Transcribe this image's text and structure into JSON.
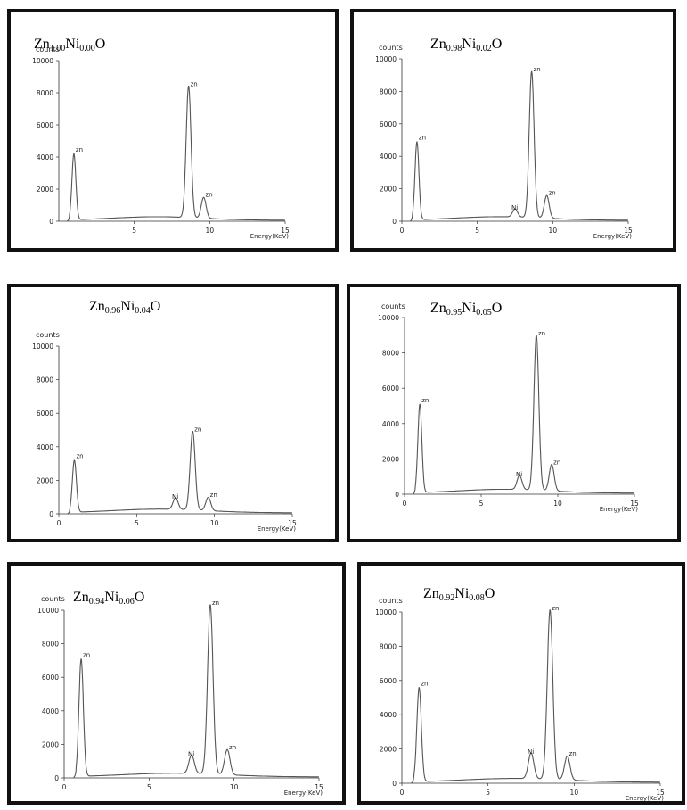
{
  "chart_data": [
    {
      "type": "line",
      "title_parts": [
        "Zn",
        "1.00",
        "Ni",
        "0.00",
        "O"
      ],
      "ylabel": "counts",
      "xlabel": "Energy(KeV)",
      "xlim": [
        0,
        15
      ],
      "ylim": [
        0,
        10000
      ],
      "xticks": [
        "5",
        "10",
        "15"
      ],
      "yticks": [
        "0",
        "2000",
        "4000",
        "6000",
        "8000",
        "10000"
      ],
      "grid": false,
      "peaks": [
        {
          "label": "zn",
          "energy": 1.0,
          "counts": 4100
        },
        {
          "label": "zn",
          "energy": 8.6,
          "counts": 8200
        },
        {
          "label": "zn",
          "energy": 9.6,
          "counts": 1300
        }
      ]
    },
    {
      "type": "line",
      "title_parts": [
        "Zn",
        "0.98",
        "Ni",
        "0.02",
        "O"
      ],
      "ylabel": "counts",
      "xlabel": "Energy(KeV)",
      "xlim": [
        0,
        15
      ],
      "ylim": [
        0,
        10000
      ],
      "xticks": [
        "0",
        "5",
        "10",
        "15"
      ],
      "yticks": [
        "0",
        "2000",
        "4000",
        "6000",
        "8000",
        "10000"
      ],
      "grid": false,
      "peaks": [
        {
          "label": "zn",
          "energy": 1.0,
          "counts": 4800
        },
        {
          "label": "Ni",
          "energy": 7.5,
          "counts": 500
        },
        {
          "label": "zn",
          "energy": 8.6,
          "counts": 9000
        },
        {
          "label": "zn",
          "energy": 9.6,
          "counts": 1400
        }
      ]
    },
    {
      "type": "line",
      "title_parts": [
        "Zn",
        "0.96",
        "Ni",
        "0.04",
        "O"
      ],
      "ylabel": "counts",
      "xlabel": "Energy(KeV)",
      "xlim": [
        0,
        15
      ],
      "ylim": [
        0,
        10000
      ],
      "xticks": [
        "0",
        "5",
        "10",
        "15"
      ],
      "yticks": [
        "0",
        "2000",
        "4000",
        "6000",
        "8000",
        "10000"
      ],
      "grid": false,
      "peaks": [
        {
          "label": "zn",
          "energy": 1.0,
          "counts": 3100
        },
        {
          "label": "Ni",
          "energy": 7.5,
          "counts": 700
        },
        {
          "label": "zn",
          "energy": 8.6,
          "counts": 4700
        },
        {
          "label": "zn",
          "energy": 9.6,
          "counts": 800
        }
      ]
    },
    {
      "type": "line",
      "title_parts": [
        "Zn",
        "0.95",
        "Ni",
        "0.05",
        "O"
      ],
      "ylabel": "counts",
      "xlabel": "Energy(KeV)",
      "xlim": [
        0,
        15
      ],
      "ylim": [
        0,
        10000
      ],
      "xticks": [
        "0",
        "5",
        "10",
        "15"
      ],
      "yticks": [
        "0",
        "2000",
        "4000",
        "6000",
        "8000",
        "10000"
      ],
      "grid": false,
      "peaks": [
        {
          "label": "zn",
          "energy": 1.0,
          "counts": 5000
        },
        {
          "label": "Ni",
          "energy": 7.5,
          "counts": 800
        },
        {
          "label": "zn",
          "energy": 8.6,
          "counts": 8800
        },
        {
          "label": "zn",
          "energy": 9.6,
          "counts": 1500
        }
      ]
    },
    {
      "type": "line",
      "title_parts": [
        "Zn",
        "0.94",
        "Ni",
        "0.06",
        "O"
      ],
      "ylabel": "counts",
      "xlabel": "Energy(KeV)",
      "xlim": [
        0,
        15
      ],
      "ylim": [
        0,
        10000
      ],
      "xticks": [
        "0",
        "5",
        "10",
        "15"
      ],
      "yticks": [
        "0",
        "2000",
        "4000",
        "6000",
        "8000",
        "10000"
      ],
      "grid": false,
      "peaks": [
        {
          "label": "zn",
          "energy": 1.0,
          "counts": 7000
        },
        {
          "label": "Ni",
          "energy": 7.5,
          "counts": 1100
        },
        {
          "label": "zn",
          "energy": 8.6,
          "counts": 10100
        },
        {
          "label": "zn",
          "energy": 9.6,
          "counts": 1500
        }
      ]
    },
    {
      "type": "line",
      "title_parts": [
        "Zn",
        "0.92",
        "Ni",
        "0.08",
        "O"
      ],
      "ylabel": "counts",
      "xlabel": "Energy(KeV)",
      "xlim": [
        0,
        15
      ],
      "ylim": [
        0,
        10000
      ],
      "xticks": [
        "0",
        "5",
        "10",
        "15"
      ],
      "yticks": [
        "0",
        "2000",
        "4000",
        "6000",
        "8000",
        "10000"
      ],
      "grid": false,
      "peaks": [
        {
          "label": "zn",
          "energy": 1.0,
          "counts": 5500
        },
        {
          "label": "Ni",
          "energy": 7.5,
          "counts": 1500
        },
        {
          "label": "zn",
          "energy": 8.6,
          "counts": 9900
        },
        {
          "label": "zn",
          "energy": 9.6,
          "counts": 1400
        }
      ]
    }
  ],
  "colors": {
    "frame": "#111111",
    "curve": "#555555",
    "axis": "#333333"
  }
}
